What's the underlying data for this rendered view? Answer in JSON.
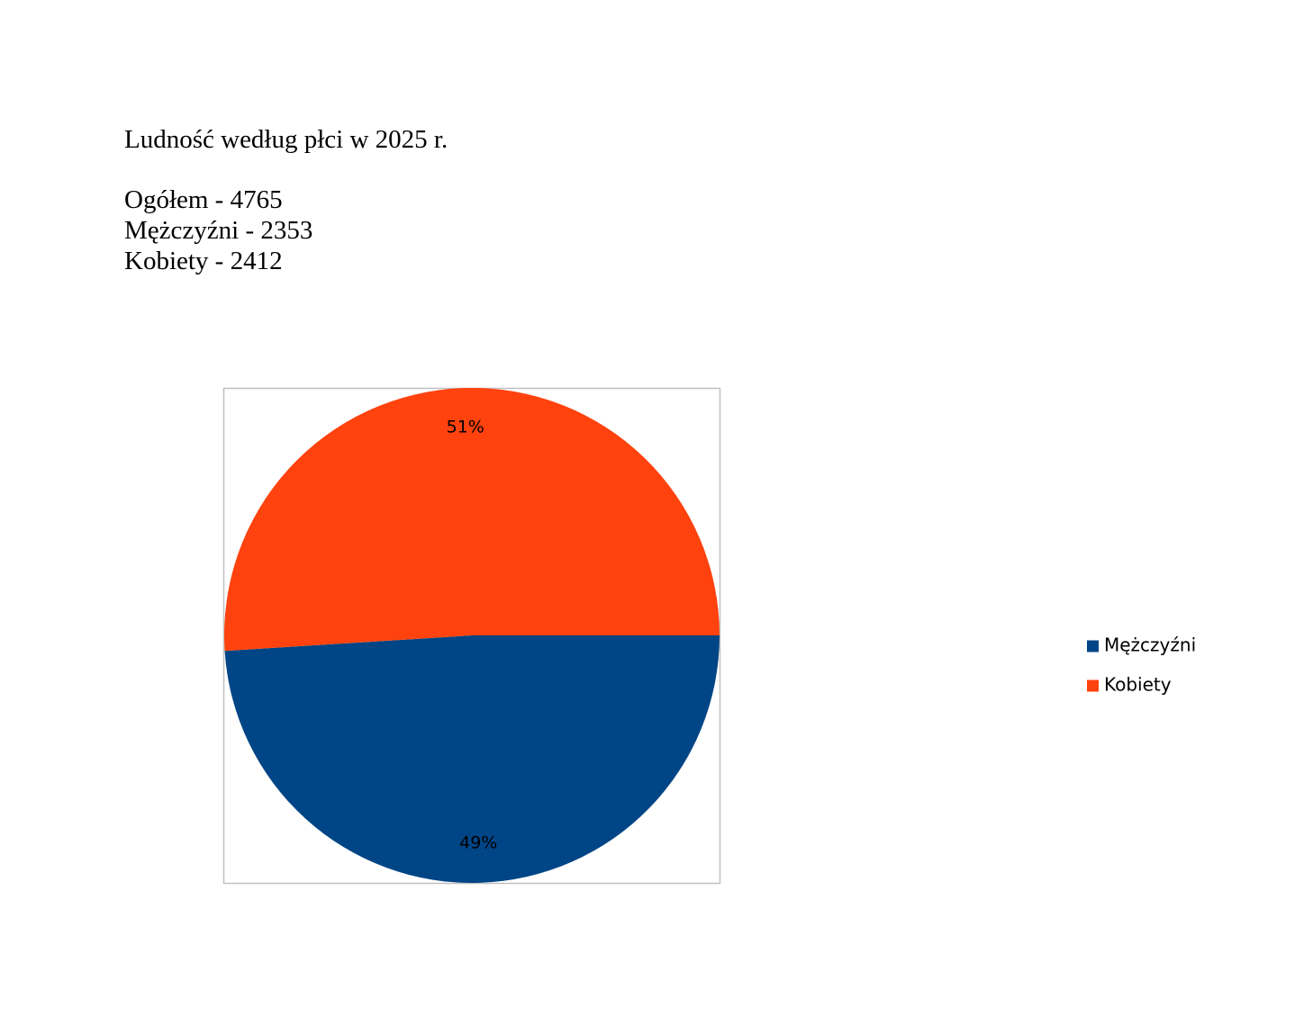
{
  "document": {
    "title": "Ludność według płci w 2025 r.",
    "lines": [
      "Ogółem - 4765",
      "Mężczyźni - 2353",
      "Kobiety - 2412"
    ]
  },
  "chart_data": {
    "type": "pie",
    "categories": [
      "Mężczyźni",
      "Kobiety"
    ],
    "values": [
      49,
      51
    ],
    "value_labels": [
      "49%",
      "51%"
    ],
    "colors": [
      "#004586",
      "#ff420e"
    ],
    "legend": "right"
  }
}
